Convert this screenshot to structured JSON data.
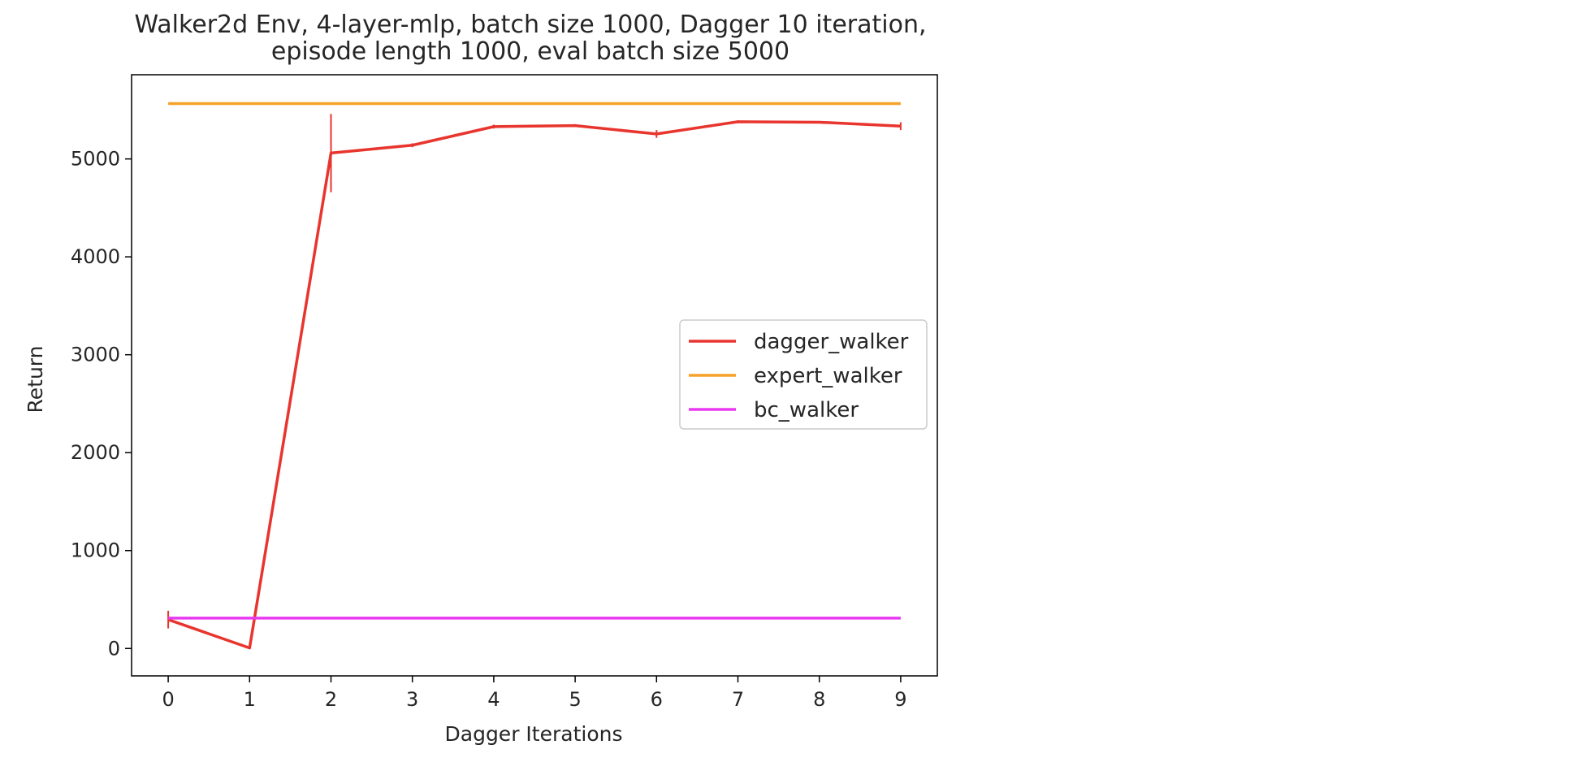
{
  "chart_data": {
    "type": "line",
    "title_line1": "Walker2d Env, 4-layer-mlp, batch size 1000, Dagger 10 iteration,",
    "title_line2": "episode length 1000, eval batch size 5000",
    "xlabel": "Dagger Iterations",
    "ylabel": "Return",
    "x": [
      0,
      1,
      2,
      3,
      4,
      5,
      6,
      7,
      8,
      9
    ],
    "xlim": [
      -0.45,
      9.45
    ],
    "ylim": [
      -280,
      5860
    ],
    "xticks": [
      0,
      1,
      2,
      3,
      4,
      5,
      6,
      7,
      8,
      9
    ],
    "yticks": [
      0,
      1000,
      2000,
      3000,
      4000,
      5000
    ],
    "grid": false,
    "legend_position": "center-right",
    "series": [
      {
        "name": "dagger_walker",
        "color": "#e8352e",
        "values": [
          295,
          5,
          5060,
          5140,
          5330,
          5340,
          5255,
          5380,
          5375,
          5335
        ],
        "errors": [
          90,
          5,
          400,
          20,
          20,
          15,
          40,
          15,
          10,
          40
        ]
      },
      {
        "name": "expert_walker",
        "color": "#f5a22a",
        "values": [
          5565,
          5565,
          5565,
          5565,
          5565,
          5565,
          5565,
          5565,
          5565,
          5565
        ]
      },
      {
        "name": "bc_walker",
        "color": "#e83af0",
        "values": [
          310,
          310,
          310,
          310,
          310,
          310,
          310,
          310,
          310,
          310
        ]
      }
    ]
  }
}
